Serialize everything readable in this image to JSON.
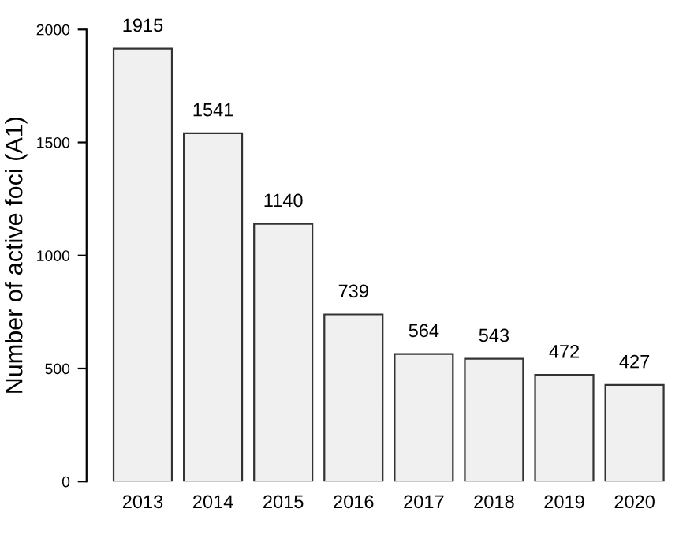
{
  "chart_data": {
    "type": "bar",
    "ylabel": "Number of active foci (A1)",
    "categories": [
      "2013",
      "2014",
      "2015",
      "2016",
      "2017",
      "2018",
      "2019",
      "2020"
    ],
    "values": [
      1915,
      1541,
      1140,
      739,
      564,
      543,
      472,
      427
    ],
    "color": "#f0f0f0",
    "ylim": [
      0,
      2000
    ],
    "yticks": [
      0,
      500,
      1000,
      1500,
      2000
    ],
    "grid": false,
    "data_labels": true
  }
}
